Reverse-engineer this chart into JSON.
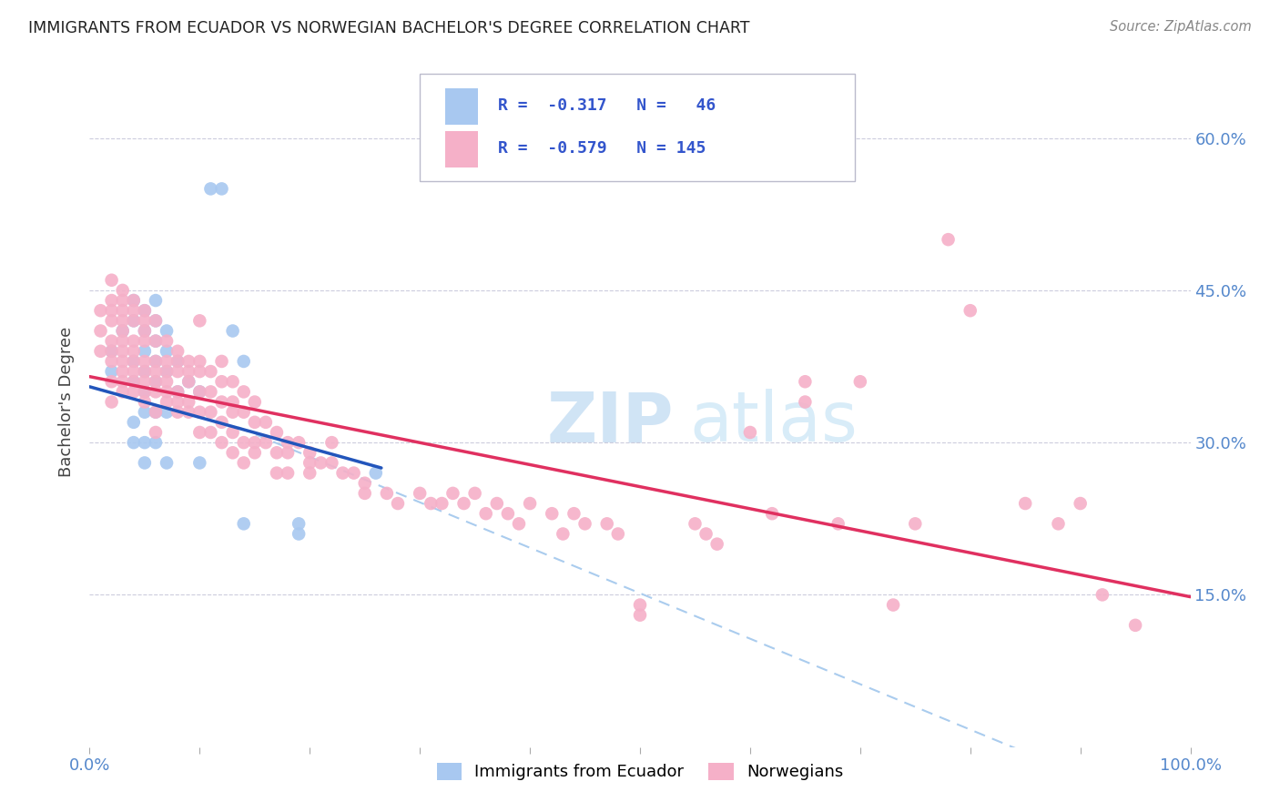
{
  "title": "IMMIGRANTS FROM ECUADOR VS NORWEGIAN BACHELOR'S DEGREE CORRELATION CHART",
  "source": "Source: ZipAtlas.com",
  "ylabel": "Bachelor's Degree",
  "ytick_values": [
    0.6,
    0.45,
    0.3,
    0.15
  ],
  "xlim": [
    0.0,
    1.0
  ],
  "ylim": [
    0.0,
    0.68
  ],
  "color_ecuador": "#a8c8f0",
  "color_norway": "#f5b0c8",
  "color_line_ecuador": "#2255bb",
  "color_line_norway": "#e03060",
  "color_dashed": "#aaccee",
  "watermark_zip": "ZIP",
  "watermark_atlas": "atlas",
  "background_color": "#ffffff",
  "ecuador_R": -0.317,
  "ecuador_N": 46,
  "norway_R": -0.579,
  "norway_N": 145,
  "ecuador_line_x": [
    0.0,
    0.265
  ],
  "ecuador_line_y": [
    0.355,
    0.275
  ],
  "norway_line_x": [
    0.0,
    1.0
  ],
  "norway_line_y": [
    0.365,
    0.148
  ],
  "dashed_line_x": [
    0.135,
    0.95
  ],
  "dashed_line_y": [
    0.315,
    -0.05
  ],
  "ecuador_scatter": [
    [
      0.02,
      0.39
    ],
    [
      0.02,
      0.37
    ],
    [
      0.03,
      0.41
    ],
    [
      0.04,
      0.44
    ],
    [
      0.04,
      0.42
    ],
    [
      0.04,
      0.38
    ],
    [
      0.04,
      0.36
    ],
    [
      0.04,
      0.32
    ],
    [
      0.04,
      0.3
    ],
    [
      0.05,
      0.43
    ],
    [
      0.05,
      0.41
    ],
    [
      0.05,
      0.39
    ],
    [
      0.05,
      0.37
    ],
    [
      0.05,
      0.35
    ],
    [
      0.05,
      0.33
    ],
    [
      0.05,
      0.3
    ],
    [
      0.05,
      0.28
    ],
    [
      0.06,
      0.44
    ],
    [
      0.06,
      0.42
    ],
    [
      0.06,
      0.4
    ],
    [
      0.06,
      0.38
    ],
    [
      0.06,
      0.36
    ],
    [
      0.06,
      0.33
    ],
    [
      0.06,
      0.3
    ],
    [
      0.07,
      0.41
    ],
    [
      0.07,
      0.39
    ],
    [
      0.07,
      0.37
    ],
    [
      0.07,
      0.33
    ],
    [
      0.07,
      0.28
    ],
    [
      0.08,
      0.38
    ],
    [
      0.08,
      0.35
    ],
    [
      0.09,
      0.36
    ],
    [
      0.1,
      0.35
    ],
    [
      0.1,
      0.28
    ],
    [
      0.11,
      0.55
    ],
    [
      0.12,
      0.55
    ],
    [
      0.13,
      0.41
    ],
    [
      0.14,
      0.38
    ],
    [
      0.14,
      0.22
    ],
    [
      0.19,
      0.22
    ],
    [
      0.19,
      0.21
    ],
    [
      0.26,
      0.27
    ]
  ],
  "norway_scatter": [
    [
      0.01,
      0.43
    ],
    [
      0.01,
      0.41
    ],
    [
      0.01,
      0.39
    ],
    [
      0.02,
      0.46
    ],
    [
      0.02,
      0.44
    ],
    [
      0.02,
      0.43
    ],
    [
      0.02,
      0.42
    ],
    [
      0.02,
      0.4
    ],
    [
      0.02,
      0.39
    ],
    [
      0.02,
      0.38
    ],
    [
      0.02,
      0.36
    ],
    [
      0.02,
      0.34
    ],
    [
      0.03,
      0.45
    ],
    [
      0.03,
      0.44
    ],
    [
      0.03,
      0.43
    ],
    [
      0.03,
      0.42
    ],
    [
      0.03,
      0.41
    ],
    [
      0.03,
      0.4
    ],
    [
      0.03,
      0.39
    ],
    [
      0.03,
      0.38
    ],
    [
      0.03,
      0.37
    ],
    [
      0.03,
      0.36
    ],
    [
      0.03,
      0.35
    ],
    [
      0.04,
      0.44
    ],
    [
      0.04,
      0.43
    ],
    [
      0.04,
      0.42
    ],
    [
      0.04,
      0.4
    ],
    [
      0.04,
      0.39
    ],
    [
      0.04,
      0.38
    ],
    [
      0.04,
      0.37
    ],
    [
      0.04,
      0.36
    ],
    [
      0.04,
      0.35
    ],
    [
      0.05,
      0.43
    ],
    [
      0.05,
      0.42
    ],
    [
      0.05,
      0.41
    ],
    [
      0.05,
      0.4
    ],
    [
      0.05,
      0.38
    ],
    [
      0.05,
      0.37
    ],
    [
      0.05,
      0.36
    ],
    [
      0.05,
      0.35
    ],
    [
      0.05,
      0.34
    ],
    [
      0.06,
      0.42
    ],
    [
      0.06,
      0.4
    ],
    [
      0.06,
      0.38
    ],
    [
      0.06,
      0.37
    ],
    [
      0.06,
      0.36
    ],
    [
      0.06,
      0.35
    ],
    [
      0.06,
      0.33
    ],
    [
      0.06,
      0.31
    ],
    [
      0.07,
      0.4
    ],
    [
      0.07,
      0.38
    ],
    [
      0.07,
      0.37
    ],
    [
      0.07,
      0.36
    ],
    [
      0.07,
      0.35
    ],
    [
      0.07,
      0.34
    ],
    [
      0.08,
      0.39
    ],
    [
      0.08,
      0.38
    ],
    [
      0.08,
      0.37
    ],
    [
      0.08,
      0.35
    ],
    [
      0.08,
      0.34
    ],
    [
      0.08,
      0.33
    ],
    [
      0.09,
      0.38
    ],
    [
      0.09,
      0.37
    ],
    [
      0.09,
      0.36
    ],
    [
      0.09,
      0.34
    ],
    [
      0.09,
      0.33
    ],
    [
      0.1,
      0.42
    ],
    [
      0.1,
      0.38
    ],
    [
      0.1,
      0.37
    ],
    [
      0.1,
      0.35
    ],
    [
      0.1,
      0.33
    ],
    [
      0.1,
      0.31
    ],
    [
      0.11,
      0.37
    ],
    [
      0.11,
      0.35
    ],
    [
      0.11,
      0.33
    ],
    [
      0.11,
      0.31
    ],
    [
      0.12,
      0.38
    ],
    [
      0.12,
      0.36
    ],
    [
      0.12,
      0.34
    ],
    [
      0.12,
      0.32
    ],
    [
      0.12,
      0.3
    ],
    [
      0.13,
      0.36
    ],
    [
      0.13,
      0.34
    ],
    [
      0.13,
      0.33
    ],
    [
      0.13,
      0.31
    ],
    [
      0.13,
      0.29
    ],
    [
      0.14,
      0.35
    ],
    [
      0.14,
      0.33
    ],
    [
      0.14,
      0.3
    ],
    [
      0.14,
      0.28
    ],
    [
      0.15,
      0.34
    ],
    [
      0.15,
      0.32
    ],
    [
      0.15,
      0.3
    ],
    [
      0.15,
      0.29
    ],
    [
      0.16,
      0.32
    ],
    [
      0.16,
      0.3
    ],
    [
      0.17,
      0.31
    ],
    [
      0.17,
      0.29
    ],
    [
      0.17,
      0.27
    ],
    [
      0.18,
      0.3
    ],
    [
      0.18,
      0.29
    ],
    [
      0.18,
      0.27
    ],
    [
      0.19,
      0.3
    ],
    [
      0.2,
      0.29
    ],
    [
      0.2,
      0.28
    ],
    [
      0.2,
      0.27
    ],
    [
      0.21,
      0.28
    ],
    [
      0.22,
      0.3
    ],
    [
      0.22,
      0.28
    ],
    [
      0.23,
      0.27
    ],
    [
      0.24,
      0.27
    ],
    [
      0.25,
      0.26
    ],
    [
      0.25,
      0.25
    ],
    [
      0.27,
      0.25
    ],
    [
      0.28,
      0.24
    ],
    [
      0.3,
      0.25
    ],
    [
      0.31,
      0.24
    ],
    [
      0.32,
      0.24
    ],
    [
      0.33,
      0.25
    ],
    [
      0.34,
      0.24
    ],
    [
      0.35,
      0.25
    ],
    [
      0.36,
      0.23
    ],
    [
      0.37,
      0.24
    ],
    [
      0.38,
      0.23
    ],
    [
      0.39,
      0.22
    ],
    [
      0.4,
      0.24
    ],
    [
      0.42,
      0.23
    ],
    [
      0.43,
      0.21
    ],
    [
      0.44,
      0.23
    ],
    [
      0.45,
      0.22
    ],
    [
      0.47,
      0.22
    ],
    [
      0.48,
      0.21
    ],
    [
      0.5,
      0.14
    ],
    [
      0.5,
      0.13
    ],
    [
      0.55,
      0.22
    ],
    [
      0.56,
      0.21
    ],
    [
      0.57,
      0.2
    ],
    [
      0.6,
      0.31
    ],
    [
      0.62,
      0.23
    ],
    [
      0.65,
      0.36
    ],
    [
      0.65,
      0.34
    ],
    [
      0.68,
      0.22
    ],
    [
      0.7,
      0.36
    ],
    [
      0.73,
      0.14
    ],
    [
      0.75,
      0.22
    ],
    [
      0.78,
      0.5
    ],
    [
      0.8,
      0.43
    ],
    [
      0.85,
      0.24
    ],
    [
      0.88,
      0.22
    ],
    [
      0.9,
      0.24
    ],
    [
      0.92,
      0.15
    ],
    [
      0.95,
      0.12
    ]
  ]
}
